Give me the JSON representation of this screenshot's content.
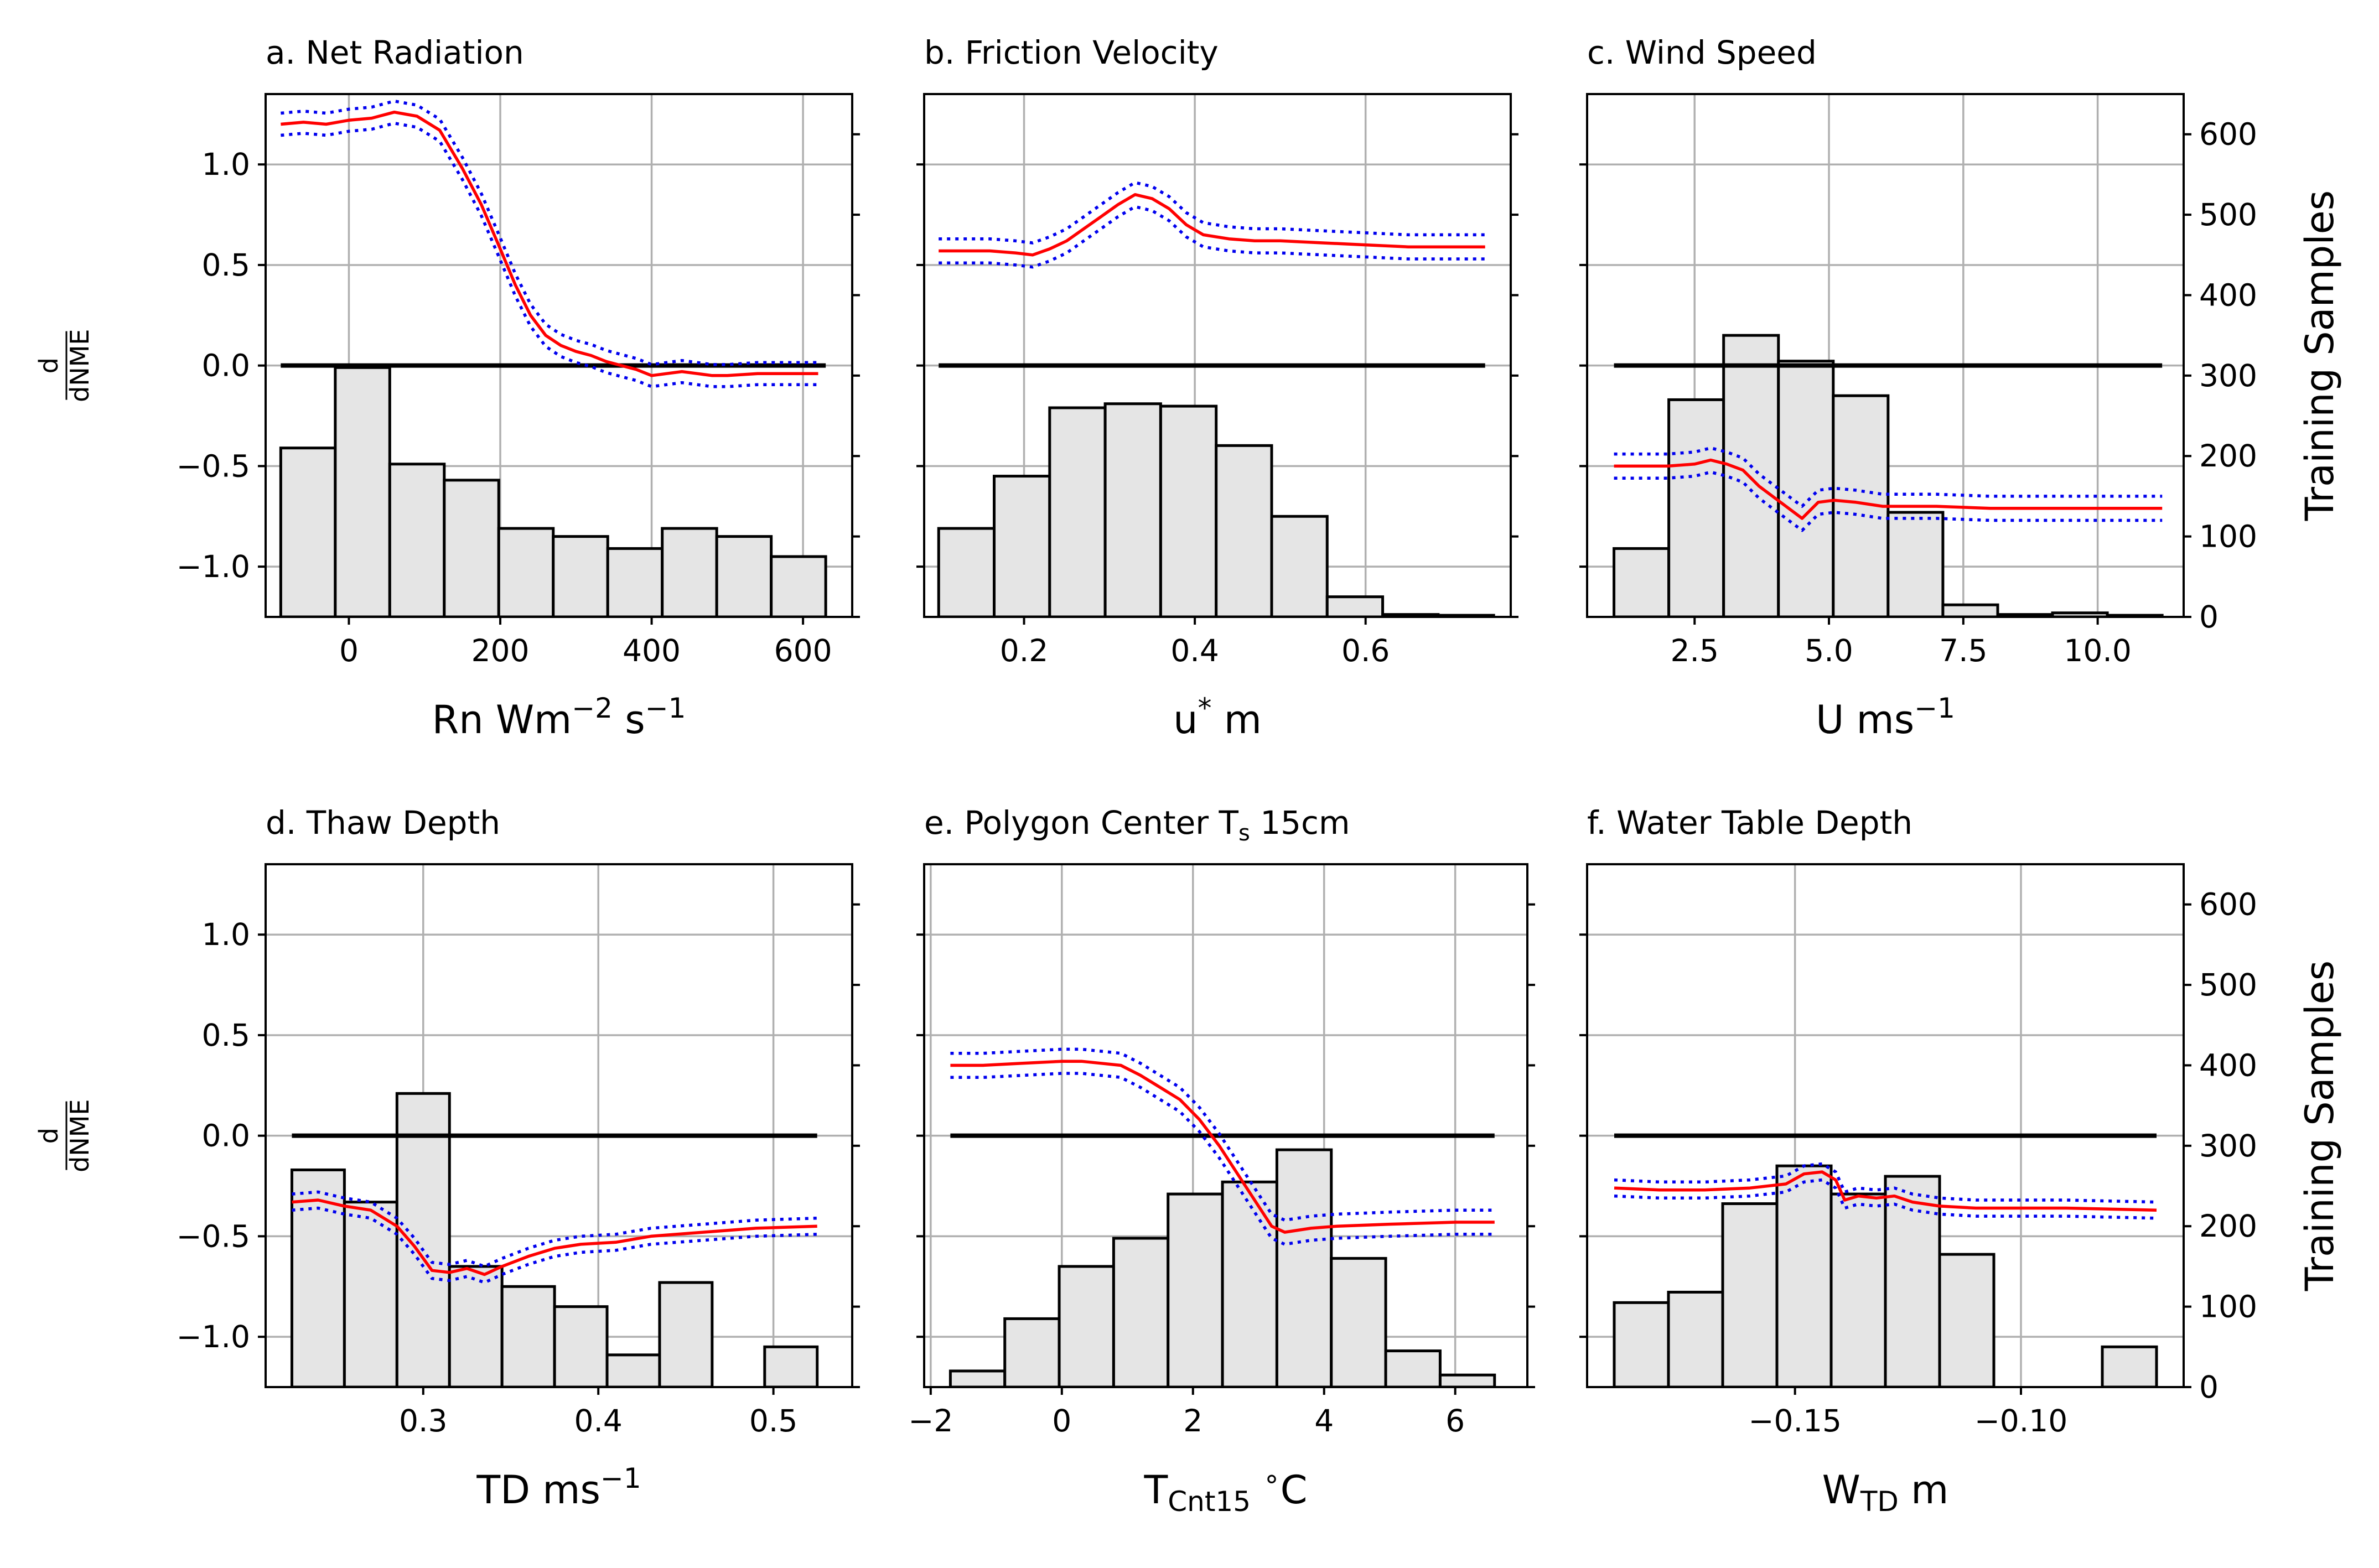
{
  "figure": {
    "left_ylabel_num": "d",
    "left_ylabel_den": "dNME",
    "right_ylabel": "Training Samples",
    "colors": {
      "mean": "#ff0000",
      "band": "#0000ee",
      "bars": "#e5e5e5",
      "grid": "#b0b0b0"
    }
  },
  "chart_data": [
    {
      "id": "a",
      "type": "bar+line",
      "title": "a. Net Radiation",
      "xlabel": {
        "base": "Rn Wm",
        "sup1": "−2",
        "mid": " s",
        "sup2": "−1"
      },
      "xlim": [
        -110,
        665
      ],
      "ylim": [
        -1.25,
        1.35
      ],
      "y2lim": [
        0,
        650
      ],
      "xticks": [
        0,
        200,
        400,
        600
      ],
      "xtick_labels": [
        "0",
        "200",
        "400",
        "600"
      ],
      "yticks": [
        1.0,
        0.5,
        0.0,
        -0.5,
        -1.0
      ],
      "ytick_labels": [
        "1.0",
        "0.5",
        "0.0",
        "−0.5",
        "−1.0"
      ],
      "y2ticks": [
        0,
        100,
        200,
        300,
        400,
        500,
        600
      ],
      "show_left_labels": true,
      "show_right_labels": false,
      "hist": {
        "edges": [
          -90,
          -18,
          54,
          126,
          198,
          270,
          342,
          414,
          486,
          558,
          630
        ],
        "counts": [
          210,
          310,
          190,
          170,
          110,
          100,
          85,
          110,
          100,
          75
        ]
      },
      "mean": [
        [
          -90,
          1.2
        ],
        [
          -60,
          1.21
        ],
        [
          -30,
          1.2
        ],
        [
          0,
          1.22
        ],
        [
          30,
          1.23
        ],
        [
          60,
          1.26
        ],
        [
          90,
          1.24
        ],
        [
          120,
          1.17
        ],
        [
          150,
          0.98
        ],
        [
          175,
          0.8
        ],
        [
          200,
          0.58
        ],
        [
          220,
          0.4
        ],
        [
          240,
          0.25
        ],
        [
          260,
          0.15
        ],
        [
          280,
          0.1
        ],
        [
          300,
          0.07
        ],
        [
          320,
          0.05
        ],
        [
          340,
          0.02
        ],
        [
          360,
          0.0
        ],
        [
          380,
          -0.02
        ],
        [
          400,
          -0.05
        ],
        [
          420,
          -0.04
        ],
        [
          440,
          -0.03
        ],
        [
          460,
          -0.04
        ],
        [
          480,
          -0.05
        ],
        [
          500,
          -0.05
        ],
        [
          540,
          -0.04
        ],
        [
          580,
          -0.04
        ],
        [
          620,
          -0.04
        ]
      ],
      "band": 0.055,
      "zero_span": [
        -90,
        630
      ]
    },
    {
      "id": "b",
      "type": "bar+line",
      "title": "b. Friction Velocity",
      "xlabel": {
        "base": "u",
        "sup1": "*",
        "mid": " m",
        "sup2": ""
      },
      "xlim": [
        0.083,
        0.77
      ],
      "ylim": [
        -1.25,
        1.35
      ],
      "y2lim": [
        0,
        650
      ],
      "xticks": [
        0.2,
        0.4,
        0.6
      ],
      "xtick_labels": [
        "0.2",
        "0.4",
        "0.6"
      ],
      "yticks": [
        1.0,
        0.5,
        0.0,
        -0.5,
        -1.0
      ],
      "ytick_labels": [
        "1.0",
        "0.5",
        "0.0",
        "−0.5",
        "−1.0"
      ],
      "y2ticks": [
        0,
        100,
        200,
        300,
        400,
        500,
        600
      ],
      "show_left_labels": false,
      "show_right_labels": false,
      "hist": {
        "edges": [
          0.1,
          0.165,
          0.23,
          0.295,
          0.36,
          0.425,
          0.49,
          0.555,
          0.62,
          0.685,
          0.75
        ],
        "counts": [
          110,
          175,
          260,
          265,
          262,
          213,
          125,
          25,
          3,
          2
        ]
      },
      "mean": [
        [
          0.1,
          0.57
        ],
        [
          0.13,
          0.57
        ],
        [
          0.16,
          0.57
        ],
        [
          0.19,
          0.56
        ],
        [
          0.21,
          0.55
        ],
        [
          0.23,
          0.58
        ],
        [
          0.25,
          0.62
        ],
        [
          0.27,
          0.68
        ],
        [
          0.29,
          0.74
        ],
        [
          0.31,
          0.8
        ],
        [
          0.33,
          0.85
        ],
        [
          0.35,
          0.83
        ],
        [
          0.37,
          0.78
        ],
        [
          0.39,
          0.7
        ],
        [
          0.41,
          0.65
        ],
        [
          0.44,
          0.63
        ],
        [
          0.47,
          0.62
        ],
        [
          0.5,
          0.62
        ],
        [
          0.55,
          0.61
        ],
        [
          0.6,
          0.6
        ],
        [
          0.65,
          0.59
        ],
        [
          0.7,
          0.59
        ],
        [
          0.74,
          0.59
        ]
      ],
      "band": 0.06,
      "zero_span": [
        0.1,
        0.74
      ]
    },
    {
      "id": "c",
      "type": "bar+line",
      "title": "c. Wind Speed",
      "xlabel": {
        "base": "U ms",
        "sup1": "−1",
        "mid": "",
        "sup2": ""
      },
      "xlim": [
        0.5,
        11.6
      ],
      "ylim": [
        -1.25,
        1.35
      ],
      "y2lim": [
        0,
        650
      ],
      "xticks": [
        2.5,
        5.0,
        7.5,
        10.0
      ],
      "xtick_labels": [
        "2.5",
        "5.0",
        "7.5",
        "10.0"
      ],
      "yticks": [
        1.0,
        0.5,
        0.0,
        -0.5,
        -1.0
      ],
      "ytick_labels": [
        "1.0",
        "0.5",
        "0.0",
        "−0.5",
        "−1.0"
      ],
      "y2ticks": [
        0,
        100,
        200,
        300,
        400,
        500,
        600
      ],
      "y2tick_labels": [
        "0",
        "100",
        "200",
        "300",
        "400",
        "500",
        "600"
      ],
      "show_left_labels": false,
      "show_right_labels": true,
      "hist": {
        "edges": [
          1.0,
          2.02,
          3.04,
          4.06,
          5.08,
          6.1,
          7.12,
          8.14,
          9.16,
          10.18,
          11.2
        ],
        "counts": [
          85,
          270,
          350,
          318,
          275,
          130,
          15,
          3,
          5,
          2
        ]
      },
      "mean": [
        [
          1.0,
          -0.5
        ],
        [
          1.5,
          -0.5
        ],
        [
          2.0,
          -0.5
        ],
        [
          2.5,
          -0.49
        ],
        [
          2.8,
          -0.47
        ],
        [
          3.1,
          -0.49
        ],
        [
          3.4,
          -0.52
        ],
        [
          3.7,
          -0.6
        ],
        [
          4.0,
          -0.66
        ],
        [
          4.2,
          -0.7
        ],
        [
          4.5,
          -0.76
        ],
        [
          4.8,
          -0.68
        ],
        [
          5.1,
          -0.67
        ],
        [
          5.5,
          -0.68
        ],
        [
          6.0,
          -0.7
        ],
        [
          7.0,
          -0.7
        ],
        [
          8.0,
          -0.71
        ],
        [
          9.0,
          -0.71
        ],
        [
          10.0,
          -0.71
        ],
        [
          11.2,
          -0.71
        ]
      ],
      "band": 0.06,
      "zero_span": [
        1.0,
        11.2
      ]
    },
    {
      "id": "d",
      "type": "bar+line",
      "title": "d. Thaw Depth",
      "xlabel": {
        "base": "TD ms",
        "sup1": "−1",
        "mid": "",
        "sup2": ""
      },
      "xlim": [
        0.21,
        0.545
      ],
      "ylim": [
        -1.25,
        1.35
      ],
      "y2lim": [
        0,
        650
      ],
      "xticks": [
        0.3,
        0.4,
        0.5
      ],
      "xtick_labels": [
        "0.3",
        "0.4",
        "0.5"
      ],
      "yticks": [
        1.0,
        0.5,
        0.0,
        -0.5,
        -1.0
      ],
      "ytick_labels": [
        "1.0",
        "0.5",
        "0.0",
        "−0.5",
        "−1.0"
      ],
      "y2ticks": [
        0,
        100,
        200,
        300,
        400,
        500,
        600
      ],
      "show_left_labels": true,
      "show_right_labels": false,
      "hist": {
        "edges": [
          0.225,
          0.255,
          0.285,
          0.315,
          0.345,
          0.375,
          0.405,
          0.435,
          0.465,
          0.495,
          0.525
        ],
        "counts": [
          270,
          230,
          365,
          150,
          125,
          100,
          40,
          130,
          0,
          50
        ]
      },
      "mean": [
        [
          0.225,
          -0.33
        ],
        [
          0.24,
          -0.32
        ],
        [
          0.255,
          -0.35
        ],
        [
          0.27,
          -0.37
        ],
        [
          0.285,
          -0.45
        ],
        [
          0.295,
          -0.55
        ],
        [
          0.305,
          -0.67
        ],
        [
          0.315,
          -0.68
        ],
        [
          0.325,
          -0.66
        ],
        [
          0.335,
          -0.69
        ],
        [
          0.345,
          -0.65
        ],
        [
          0.36,
          -0.6
        ],
        [
          0.375,
          -0.56
        ],
        [
          0.39,
          -0.54
        ],
        [
          0.41,
          -0.53
        ],
        [
          0.43,
          -0.5
        ],
        [
          0.46,
          -0.48
        ],
        [
          0.49,
          -0.46
        ],
        [
          0.525,
          -0.45
        ]
      ],
      "band": 0.04,
      "zero_span": [
        0.225,
        0.525
      ]
    },
    {
      "id": "e",
      "type": "bar+line",
      "title": "e. Polygon Center T",
      "title_sub": "s",
      "title_tail": " 15cm",
      "xlabel": {
        "base": "T",
        "sub": "Cnt15",
        "mid": " ",
        "sup1": "∘",
        "tail": "C"
      },
      "xlim": [
        -2.1,
        7.1
      ],
      "ylim": [
        -1.25,
        1.35
      ],
      "y2lim": [
        0,
        650
      ],
      "xticks": [
        -2,
        0,
        2,
        4,
        6
      ],
      "xtick_labels": [
        "−2",
        "0",
        "2",
        "4",
        "6"
      ],
      "yticks": [
        1.0,
        0.5,
        0.0,
        -0.5,
        -1.0
      ],
      "ytick_labels": [
        "1.0",
        "0.5",
        "0.0",
        "−0.5",
        "−1.0"
      ],
      "y2ticks": [
        0,
        100,
        200,
        300,
        400,
        500,
        600
      ],
      "show_left_labels": false,
      "show_right_labels": false,
      "hist": {
        "edges": [
          -1.7,
          -0.87,
          -0.04,
          0.79,
          1.62,
          2.45,
          3.28,
          4.11,
          4.94,
          5.77,
          6.6
        ],
        "counts": [
          20,
          85,
          150,
          185,
          240,
          255,
          295,
          160,
          45,
          15
        ]
      },
      "mean": [
        [
          -1.7,
          0.35
        ],
        [
          -1.2,
          0.35
        ],
        [
          -0.6,
          0.36
        ],
        [
          0.0,
          0.37
        ],
        [
          0.3,
          0.37
        ],
        [
          0.6,
          0.36
        ],
        [
          0.9,
          0.35
        ],
        [
          1.2,
          0.3
        ],
        [
          1.5,
          0.24
        ],
        [
          1.8,
          0.18
        ],
        [
          2.1,
          0.08
        ],
        [
          2.4,
          -0.05
        ],
        [
          2.7,
          -0.2
        ],
        [
          3.0,
          -0.35
        ],
        [
          3.2,
          -0.45
        ],
        [
          3.4,
          -0.48
        ],
        [
          3.8,
          -0.46
        ],
        [
          4.2,
          -0.45
        ],
        [
          5.0,
          -0.44
        ],
        [
          6.0,
          -0.43
        ],
        [
          6.6,
          -0.43
        ]
      ],
      "band": 0.06,
      "zero_span": [
        -1.7,
        6.6
      ]
    },
    {
      "id": "f",
      "type": "bar+line",
      "title": "f. Water Table Depth",
      "xlabel": {
        "base": "W",
        "sub": "TD",
        "mid": " m",
        "sup1": "",
        "tail": ""
      },
      "xlim": [
        -0.196,
        -0.064
      ],
      "ylim": [
        -1.25,
        1.35
      ],
      "y2lim": [
        0,
        650
      ],
      "xticks": [
        -0.15,
        -0.1
      ],
      "xtick_labels": [
        "−0.15",
        "−0.10"
      ],
      "yticks": [
        1.0,
        0.5,
        0.0,
        -0.5,
        -1.0
      ],
      "ytick_labels": [
        "1.0",
        "0.5",
        "0.0",
        "−0.5",
        "−1.0"
      ],
      "y2ticks": [
        0,
        100,
        200,
        300,
        400,
        500,
        600
      ],
      "y2tick_labels": [
        "0",
        "100",
        "200",
        "300",
        "400",
        "500",
        "600"
      ],
      "show_left_labels": false,
      "show_right_labels": true,
      "hist": {
        "edges": [
          -0.19,
          -0.178,
          -0.166,
          -0.154,
          -0.142,
          -0.13,
          -0.118,
          -0.106,
          -0.094,
          -0.082,
          -0.07
        ],
        "counts": [
          105,
          118,
          228,
          275,
          240,
          262,
          165,
          0,
          0,
          50
        ]
      },
      "mean": [
        [
          -0.19,
          -0.26
        ],
        [
          -0.18,
          -0.27
        ],
        [
          -0.17,
          -0.27
        ],
        [
          -0.16,
          -0.26
        ],
        [
          -0.152,
          -0.24
        ],
        [
          -0.148,
          -0.19
        ],
        [
          -0.144,
          -0.18
        ],
        [
          -0.141,
          -0.22
        ],
        [
          -0.139,
          -0.32
        ],
        [
          -0.136,
          -0.3
        ],
        [
          -0.132,
          -0.31
        ],
        [
          -0.128,
          -0.3
        ],
        [
          -0.124,
          -0.33
        ],
        [
          -0.118,
          -0.35
        ],
        [
          -0.11,
          -0.36
        ],
        [
          -0.09,
          -0.36
        ],
        [
          -0.07,
          -0.37
        ]
      ],
      "band": 0.04,
      "zero_span": [
        -0.19,
        -0.07
      ]
    }
  ]
}
